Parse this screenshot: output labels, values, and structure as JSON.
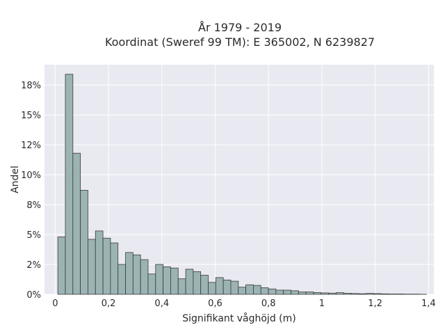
{
  "chart_data": {
    "type": "bar",
    "title": "År 1979 - 2019",
    "subtitle": "Koordinat (Sweref 99 TM): E 365002, N 6239827",
    "xlabel": "Signifikant våghöjd (m)",
    "ylabel": "Andel",
    "xlim": [
      -0.04,
      1.42
    ],
    "ylim": [
      0,
      0.192
    ],
    "x_ticks": [
      0,
      0.2,
      0.4,
      0.6,
      0.8,
      1,
      1.2,
      1.4
    ],
    "x_tick_labels": [
      "0",
      "0,2",
      "0,4",
      "0,6",
      "0,8",
      "1",
      "1,2",
      "1,4"
    ],
    "y_ticks": [
      0,
      0.025,
      0.05,
      0.075,
      0.1,
      0.125,
      0.15,
      0.175
    ],
    "y_tick_labels": [
      "0%",
      "2%",
      "5%",
      "8%",
      "10%",
      "12%",
      "15%",
      "18%"
    ],
    "grid": true,
    "bin_width": 0.0282,
    "bin_start": 0.01,
    "bar_color": "#9bb3b3",
    "edge_color": "#3a3a3a",
    "plot_background": "#e9e9f1",
    "grid_color": "#ffffff",
    "values": [
      0.048,
      0.184,
      0.118,
      0.087,
      0.046,
      0.053,
      0.047,
      0.043,
      0.025,
      0.035,
      0.033,
      0.029,
      0.017,
      0.025,
      0.023,
      0.022,
      0.013,
      0.021,
      0.019,
      0.016,
      0.01,
      0.014,
      0.012,
      0.011,
      0.006,
      0.008,
      0.0075,
      0.0055,
      0.0045,
      0.0035,
      0.0035,
      0.003,
      0.002,
      0.002,
      0.0015,
      0.0012,
      0.001,
      0.0014,
      0.0009,
      0.0007,
      0.0005,
      0.0008,
      0.0006,
      0.0004,
      0.0003,
      0.0003,
      0.0002,
      0.0002,
      0.0001
    ]
  }
}
